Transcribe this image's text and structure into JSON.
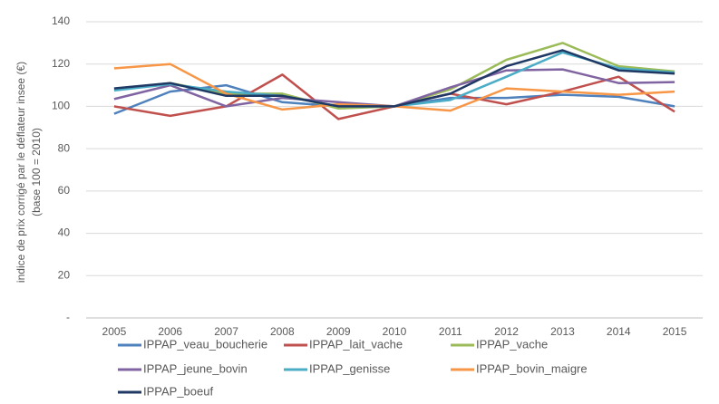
{
  "chart_data": {
    "type": "line",
    "y_label": [
      "indice de prix corrigé par le déflateur insee (€)",
      "(base 100 = 2010)"
    ],
    "categories": [
      "2005",
      "2006",
      "2007",
      "2008",
      "2009",
      "2010",
      "2011",
      "2012",
      "2013",
      "2014",
      "2015"
    ],
    "series": [
      {
        "name": "IPPAP_veau_boucherie",
        "color": "#4f81bd",
        "values": [
          96.5,
          107,
          110,
          102,
          100,
          100,
          104,
          104,
          105.5,
          104.5,
          100
        ]
      },
      {
        "name": "IPPAP_lait_vache",
        "color": "#c0504d",
        "values": [
          100,
          95.5,
          100,
          115,
          94,
          100,
          106,
          101,
          107,
          114,
          97.5
        ]
      },
      {
        "name": "IPPAP_vache",
        "color": "#9bbb59",
        "values": [
          108,
          111,
          106,
          106,
          99,
          100,
          108,
          122,
          130,
          119,
          116.5
        ]
      },
      {
        "name": "IPPAP_jeune_bovin",
        "color": "#8064a2",
        "values": [
          103.5,
          110,
          100,
          104,
          102,
          100,
          109,
          117,
          117.5,
          111,
          111.5
        ]
      },
      {
        "name": "IPPAP_genisse",
        "color": "#4bacc6",
        "values": [
          107.5,
          110.5,
          107,
          105,
          100,
          100,
          103,
          114,
          125.5,
          118,
          116
        ]
      },
      {
        "name": "IPPAP_bovin_maigre",
        "color": "#f79646",
        "values": [
          118,
          120,
          106,
          98.5,
          101,
          100,
          98,
          108.5,
          107,
          105.5,
          107
        ]
      },
      {
        "name": "IPPAP_boeuf",
        "color": "#1f3864",
        "values": [
          108.5,
          111,
          105,
          105,
          100,
          100,
          106,
          119,
          126.5,
          117,
          115.5
        ]
      }
    ],
    "ylim": [
      0,
      140
    ],
    "yticks": [
      {
        "value": 0,
        "label": "-"
      },
      20,
      40,
      60,
      80,
      100,
      120,
      140
    ],
    "grid": true,
    "legend": "bottom"
  }
}
